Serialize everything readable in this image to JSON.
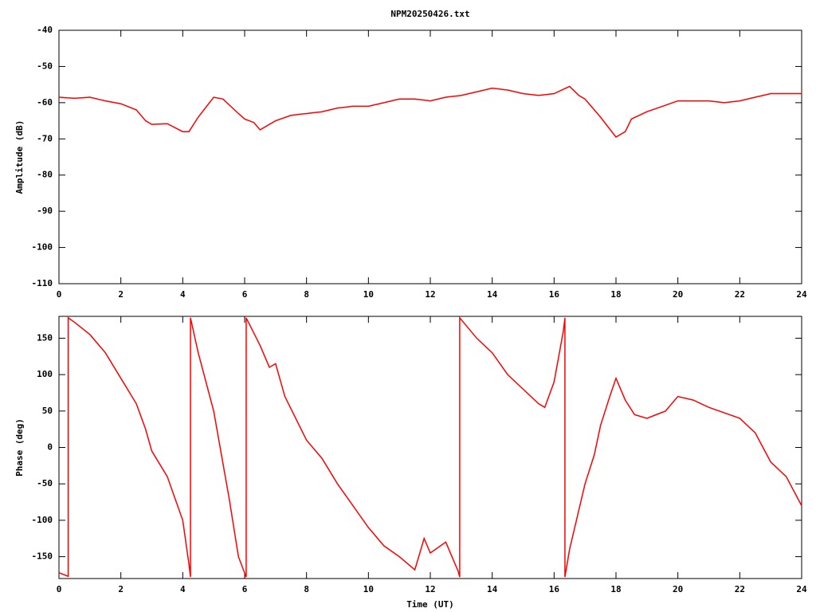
{
  "chart_data": [
    {
      "type": "line",
      "title": "NPM20250426.txt",
      "y_label": "Amplitude (dB)",
      "xlim": [
        0,
        24
      ],
      "xticks": [
        0,
        2,
        4,
        6,
        8,
        10,
        12,
        14,
        16,
        18,
        20,
        22,
        24
      ],
      "ylim": [
        -110,
        -40
      ],
      "yticks": [
        -110,
        -100,
        -90,
        -80,
        -70,
        -60,
        -50,
        -40
      ],
      "series": [
        {
          "color": "#ff0000",
          "x": [
            0,
            0.5,
            1,
            1.5,
            2,
            2.5,
            2.8,
            3,
            3.5,
            4,
            4.2,
            4.5,
            5,
            5.3,
            5.8,
            6,
            6.3,
            6.5,
            7,
            7.5,
            8,
            8.5,
            9,
            9.5,
            10,
            10.5,
            11,
            11.5,
            12,
            12.5,
            13,
            13.5,
            14,
            14.5,
            15,
            15.5,
            16,
            16.5,
            16.8,
            17,
            17.5,
            18,
            18.3,
            18.5,
            19,
            19.5,
            20,
            20.5,
            21,
            21.5,
            22,
            22.5,
            23,
            23.5,
            24
          ],
          "values": [
            -58.5,
            -58.8,
            -58.5,
            -59.5,
            -60.3,
            -62,
            -65,
            -66,
            -65.8,
            -68,
            -68,
            -64,
            -58.5,
            -59,
            -63,
            -64.5,
            -65.5,
            -67.5,
            -65,
            -63.5,
            -63,
            -62.5,
            -61.5,
            -61,
            -61,
            -60,
            -59,
            -59,
            -59.5,
            -58.5,
            -58,
            -57,
            -56,
            -56.5,
            -57.5,
            -58,
            -57.5,
            -55.5,
            -58,
            -59,
            -64,
            -69.5,
            -68,
            -64.5,
            -62.5,
            -61,
            -59.5,
            -59.5,
            -59.5,
            -60,
            -59.5,
            -58.5,
            -57.5,
            -57.5,
            -57.5
          ]
        }
      ]
    },
    {
      "type": "line",
      "x_label": "Time (UT)",
      "y_label": "Phase (deg)",
      "xlim": [
        0,
        24
      ],
      "xticks": [
        0,
        2,
        4,
        6,
        8,
        10,
        12,
        14,
        16,
        18,
        20,
        22,
        24
      ],
      "ylim": [
        -180,
        180
      ],
      "yticks": [
        -150,
        -100,
        -50,
        0,
        50,
        100,
        150
      ],
      "series": [
        {
          "color": "#ff0000",
          "x": [
            0,
            0.3,
            0.3,
            0.5,
            1,
            1.5,
            2,
            2.5,
            2.8,
            3,
            3.5,
            4,
            4.2,
            4.25,
            4.25,
            4.5,
            5,
            5.5,
            5.8,
            6.05,
            6.05,
            6.5,
            6.8,
            7,
            7.3,
            8,
            8.5,
            9,
            9.5,
            10,
            10.5,
            11,
            11.5,
            11.8,
            12,
            12.5,
            12.9,
            12.95,
            12.95,
            13.5,
            14,
            14.5,
            15,
            15.5,
            15.7,
            16,
            16.3,
            16.35,
            16.35,
            16.5,
            17,
            17.3,
            17.5,
            17.8,
            18,
            18.3,
            18.6,
            19,
            19.3,
            19.6,
            20,
            20.5,
            21,
            22,
            22.5,
            23,
            23.5,
            24
          ],
          "values": [
            -172,
            -177,
            178,
            172,
            155,
            130,
            95,
            60,
            25,
            -5,
            -40,
            -100,
            -160,
            -178,
            178,
            130,
            50,
            -70,
            -150,
            -178,
            178,
            140,
            110,
            115,
            70,
            10,
            -15,
            -50,
            -80,
            -110,
            -135,
            -150,
            -168,
            -125,
            -145,
            -130,
            -170,
            -178,
            178,
            150,
            130,
            100,
            80,
            60,
            55,
            90,
            160,
            178,
            -178,
            -140,
            -50,
            -10,
            30,
            70,
            95,
            65,
            45,
            40,
            45,
            50,
            70,
            65,
            55,
            40,
            20,
            -20,
            -40,
            -80
          ]
        }
      ]
    }
  ]
}
